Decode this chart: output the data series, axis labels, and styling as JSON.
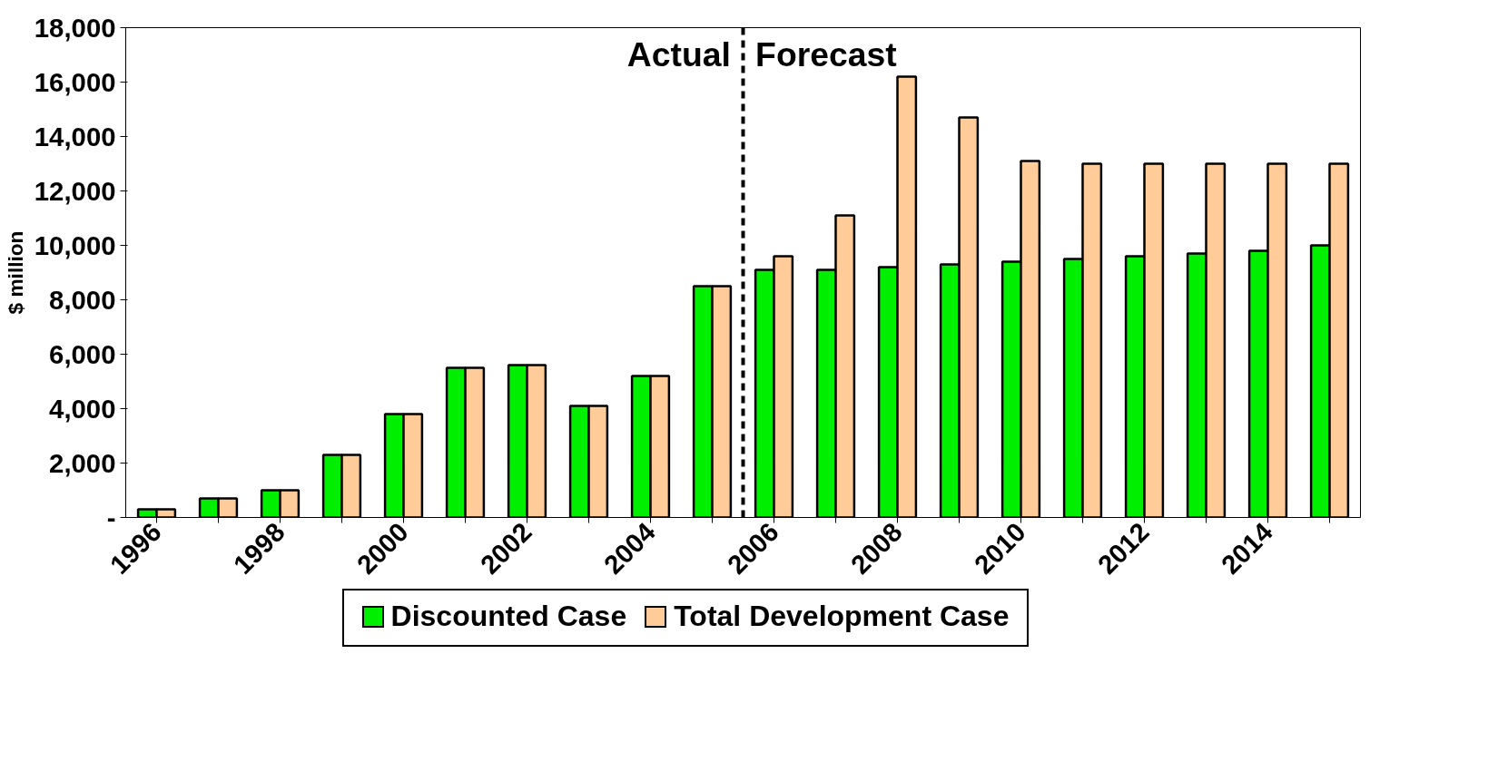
{
  "chart_data": {
    "type": "bar",
    "ylabel": "$ million",
    "categories": [
      "1996",
      null,
      "1998",
      null,
      "2000",
      null,
      "2002",
      null,
      "2004",
      null,
      "2006",
      null,
      "2008",
      null,
      "2010",
      null,
      "2012",
      null,
      "2014",
      null
    ],
    "series": [
      {
        "name": "Discounted Case",
        "color": "#00ee00",
        "values": [
          300,
          700,
          1000,
          2300,
          3800,
          5500,
          5600,
          4100,
          5200,
          8500,
          9100,
          9100,
          9200,
          9300,
          9400,
          9500,
          9600,
          9700,
          9800,
          10000
        ]
      },
      {
        "name": "Total Development Case",
        "color": "#ffcc99",
        "values": [
          300,
          700,
          1000,
          2300,
          3800,
          5500,
          5600,
          4100,
          5200,
          8500,
          9600,
          11100,
          16200,
          14700,
          13100,
          13000,
          13000,
          13000,
          13000,
          13000
        ]
      }
    ],
    "ylim": [
      0,
      18000
    ],
    "yticks": [
      {
        "value": 0,
        "label": "-"
      },
      {
        "value": 2000,
        "label": "2,000"
      },
      {
        "value": 4000,
        "label": "4,000"
      },
      {
        "value": 6000,
        "label": "6,000"
      },
      {
        "value": 8000,
        "label": "8,000"
      },
      {
        "value": 10000,
        "label": "10,000"
      },
      {
        "value": 12000,
        "label": "12,000"
      },
      {
        "value": 14000,
        "label": "14,000"
      },
      {
        "value": 16000,
        "label": "16,000"
      },
      {
        "value": 18000,
        "label": "18,000"
      }
    ],
    "ref_lines": [
      {
        "axis": "x",
        "value": "2006",
        "color": "#000000",
        "line_style": "dashed"
      }
    ],
    "annotations": [
      "Actual",
      "Forecast"
    ],
    "grid": false,
    "legend": "bottom"
  }
}
